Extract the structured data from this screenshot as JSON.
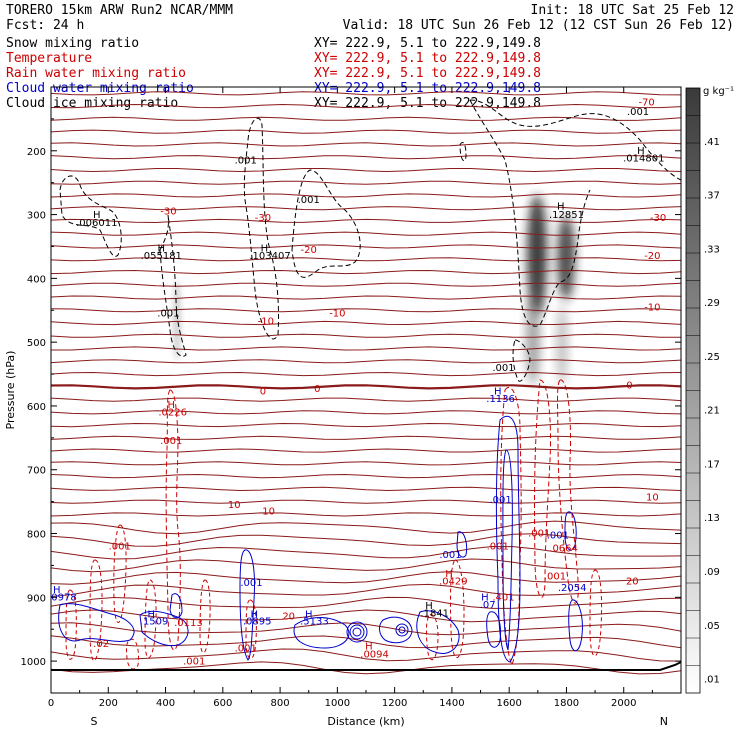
{
  "header": {
    "model": "TORERO   15km ARW   Run2   NCAR/MMM",
    "init": "Init: 18 UTC Sat 25 Feb 12",
    "fcst": "Fcst:    24 h",
    "valid": "Valid: 18 UTC Sun 26 Feb 12 (12 CST Sun 26 Feb 12)"
  },
  "fields": [
    {
      "name": "Snow mixing ratio",
      "color": "#000000",
      "xy": "XY= 222.9,  5.1 to 222.9,149.8"
    },
    {
      "name": "Temperature",
      "color": "#cc0000",
      "xy": "XY= 222.9,  5.1 to 222.9,149.8"
    },
    {
      "name": "Rain water mixing ratio",
      "color": "#cc0000",
      "xy": "XY= 222.9,  5.1 to 222.9,149.8"
    },
    {
      "name": "Cloud water mixing ratio",
      "color": "#0000cc",
      "xy": "XY= 222.9,  5.1 to 222.9,149.8"
    },
    {
      "name": "Cloud ice mixing ratio",
      "color": "#000000",
      "xy": "XY= 222.9,  5.1 to 222.9,149.8"
    }
  ],
  "chart_data": {
    "type": "contour",
    "xlabel": "Distance (km)",
    "ylabel": "Pressure (hPa)",
    "xlim": [
      0,
      2200
    ],
    "ylim": [
      1050,
      100
    ],
    "x_ticks": [
      0,
      200,
      400,
      600,
      800,
      1000,
      1200,
      1400,
      1600,
      1800,
      2000
    ],
    "y_ticks": [
      200,
      300,
      400,
      500,
      600,
      700,
      800,
      900,
      1000
    ],
    "left_end": "S",
    "right_end": "N",
    "colorbar": {
      "unit": "g kg⁻¹",
      "ticks": [
        0.01,
        0.05,
        0.09,
        0.13,
        0.17,
        0.21,
        0.25,
        0.29,
        0.33,
        0.37,
        0.41
      ],
      "tick_labels": [
        ".01",
        ".05",
        ".09",
        ".13",
        ".17",
        ".21",
        ".25",
        ".29",
        ".33",
        ".37",
        ".41"
      ]
    },
    "temperature_isotherms": [
      {
        "label": "-70",
        "pressure": 130
      },
      {
        "label": "-30",
        "pressure": 320
      },
      {
        "label": "-20",
        "pressure": 370
      },
      {
        "label": "-10",
        "pressure": 450
      },
      {
        "label": "0",
        "pressure": 570
      },
      {
        "label": "10",
        "pressure": 760
      },
      {
        "label": "20",
        "pressure": 930
      }
    ],
    "annotations": [
      {
        "text": "H",
        "x": 160,
        "p": 305,
        "color": "black"
      },
      {
        "text": ".006011",
        "x": 160,
        "p": 318,
        "color": "black"
      },
      {
        "text": "H",
        "x": 385,
        "p": 358,
        "color": "black"
      },
      {
        "text": ".055181",
        "x": 385,
        "p": 370,
        "color": "black"
      },
      {
        "text": ".001",
        "x": 410,
        "p": 460,
        "color": "black"
      },
      {
        "text": "H",
        "x": 745,
        "p": 358,
        "color": "black"
      },
      {
        "text": ".103407",
        "x": 765,
        "p": 370,
        "color": "black"
      },
      {
        "text": ".001",
        "x": 680,
        "p": 220,
        "color": "black"
      },
      {
        "text": ".001",
        "x": 900,
        "p": 282,
        "color": "black"
      },
      {
        "text": "H",
        "x": 2060,
        "p": 205,
        "color": "black"
      },
      {
        "text": ".014801",
        "x": 2070,
        "p": 217,
        "color": "black"
      },
      {
        "text": ".001",
        "x": 2050,
        "p": 144,
        "color": "black"
      },
      {
        "text": "H",
        "x": 1780,
        "p": 292,
        "color": "black"
      },
      {
        "text": ".12851",
        "x": 1800,
        "p": 305,
        "color": "black"
      },
      {
        "text": ".001",
        "x": 1580,
        "p": 545,
        "color": "black"
      },
      {
        "text": "H",
        "x": 1320,
        "p": 918,
        "color": "black"
      },
      {
        "text": ".1841",
        "x": 1340,
        "p": 930,
        "color": "black"
      },
      {
        "text": "-30",
        "x": 740,
        "p": 310,
        "color": "#cc0000"
      },
      {
        "text": "-30",
        "x": 410,
        "p": 300,
        "color": "#cc0000"
      },
      {
        "text": "-20",
        "x": 900,
        "p": 360,
        "color": "#cc0000"
      },
      {
        "text": "-10",
        "x": 750,
        "p": 472,
        "color": "#cc0000"
      },
      {
        "text": "-10",
        "x": 1000,
        "p": 460,
        "color": "#cc0000"
      },
      {
        "text": "-10",
        "x": 2100,
        "p": 450,
        "color": "#cc0000"
      },
      {
        "text": "-20",
        "x": 2100,
        "p": 370,
        "color": "#cc0000"
      },
      {
        "text": "-30",
        "x": 2120,
        "p": 310,
        "color": "#cc0000"
      },
      {
        "text": "-70",
        "x": 2080,
        "p": 129,
        "color": "#cc0000"
      },
      {
        "text": "0",
        "x": 740,
        "p": 582,
        "color": "#cc0000"
      },
      {
        "text": "0",
        "x": 930,
        "p": 578,
        "color": "#cc0000"
      },
      {
        "text": "0",
        "x": 2020,
        "p": 573,
        "color": "#cc0000"
      },
      {
        "text": "10",
        "x": 640,
        "p": 760,
        "color": "#cc0000"
      },
      {
        "text": "10",
        "x": 760,
        "p": 770,
        "color": "#cc0000"
      },
      {
        "text": "10",
        "x": 2100,
        "p": 748,
        "color": "#cc0000"
      },
      {
        "text": "20",
        "x": 830,
        "p": 935,
        "color": "#cc0000"
      },
      {
        "text": "20",
        "x": 2030,
        "p": 880,
        "color": "#cc0000"
      },
      {
        "text": "H",
        "x": 420,
        "p": 603,
        "color": "#cc0000"
      },
      {
        "text": ".0226",
        "x": 425,
        "p": 615,
        "color": "#cc0000"
      },
      {
        "text": ".001",
        "x": 420,
        "p": 660,
        "color": "#cc0000"
      },
      {
        "text": ".001",
        "x": 240,
        "p": 825,
        "color": "#cc0000"
      },
      {
        "text": ".001",
        "x": 1560,
        "p": 825,
        "color": "#cc0000"
      },
      {
        "text": ".001",
        "x": 1705,
        "p": 805,
        "color": "#cc0000"
      },
      {
        "text": ".001",
        "x": 1760,
        "p": 872,
        "color": "#cc0000"
      },
      {
        "text": ".001",
        "x": 500,
        "p": 1005,
        "color": "#cc0000"
      },
      {
        "text": ".001",
        "x": 680,
        "p": 985,
        "color": "#cc0000"
      },
      {
        "text": "H",
        "x": 1390,
        "p": 868,
        "color": "#cc0000"
      },
      {
        "text": ".0429",
        "x": 1405,
        "p": 880,
        "color": "#cc0000"
      },
      {
        "text": ".401",
        "x": 1580,
        "p": 905,
        "color": "#cc0000"
      },
      {
        "text": ".02",
        "x": 175,
        "p": 978,
        "color": "#cc0000"
      },
      {
        "text": ".0113",
        "x": 480,
        "p": 945,
        "color": "#cc0000"
      },
      {
        "text": "H",
        "x": 1110,
        "p": 982,
        "color": "#cc0000"
      },
      {
        "text": ".0094",
        "x": 1130,
        "p": 994,
        "color": "#cc0000"
      },
      {
        "text": ".0664",
        "x": 1790,
        "p": 828,
        "color": "#cc0000"
      },
      {
        "text": "H",
        "x": 1560,
        "p": 582,
        "color": "#0000cc"
      },
      {
        "text": ".1136",
        "x": 1570,
        "p": 594,
        "color": "#0000cc"
      },
      {
        "text": ".001",
        "x": 1570,
        "p": 752,
        "color": "#0000cc"
      },
      {
        "text": ".001",
        "x": 1395,
        "p": 838,
        "color": "#0000cc"
      },
      {
        "text": ".001",
        "x": 700,
        "p": 882,
        "color": "#0000cc"
      },
      {
        "text": ".001",
        "x": 1770,
        "p": 808,
        "color": "#0000cc"
      },
      {
        "text": "H",
        "x": 20,
        "p": 893,
        "color": "#0000cc"
      },
      {
        "text": ".0978",
        "x": 40,
        "p": 905,
        "color": "#0000cc"
      },
      {
        "text": ".2054",
        "x": 1820,
        "p": 890,
        "color": "#0000cc"
      },
      {
        "text": "H",
        "x": 350,
        "p": 932,
        "color": "#0000cc"
      },
      {
        "text": ".1509",
        "x": 360,
        "p": 943,
        "color": "#0000cc"
      },
      {
        "text": "H",
        "x": 710,
        "p": 932,
        "color": "#0000cc"
      },
      {
        "text": ".0895",
        "x": 720,
        "p": 943,
        "color": "#0000cc"
      },
      {
        "text": "H",
        "x": 900,
        "p": 932,
        "color": "#0000cc"
      },
      {
        "text": ".5133",
        "x": 920,
        "p": 943,
        "color": "#0000cc"
      },
      {
        "text": "H",
        "x": 1515,
        "p": 905,
        "color": "#0000cc"
      },
      {
        "text": ".07",
        "x": 1525,
        "p": 917,
        "color": "#0000cc"
      }
    ]
  }
}
